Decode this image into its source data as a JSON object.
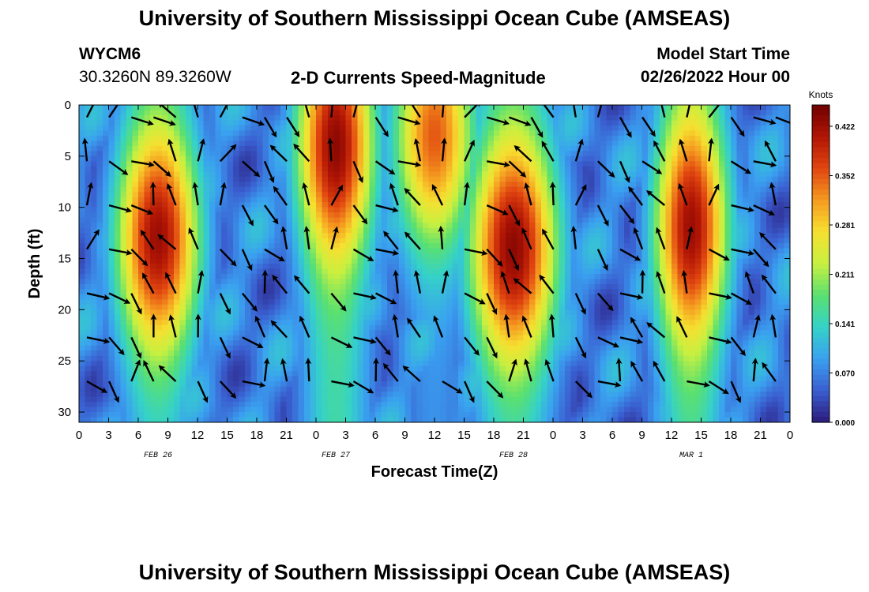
{
  "header": {
    "title": "University of Southern Mississippi Ocean Cube (AMSEAS)",
    "station_id": "WYCM6",
    "station_coords": "30.3260N  89.3260W",
    "plot_title": "2-D Currents Speed-Magnitude",
    "model_start_label": "Model Start Time",
    "model_start_value": "02/26/2022 Hour 00",
    "bottom_title": "University of Southern Mississippi Ocean Cube (AMSEAS)"
  },
  "chart_data": {
    "type": "heatmap",
    "title": "2-D Currents Speed-Magnitude",
    "xlabel": "Forecast Time(Z)",
    "ylabel": "Depth (ft)",
    "x_range_hours": [
      0,
      72
    ],
    "y_range_ft": [
      0,
      31
    ],
    "y_inverted": true,
    "x_ticks": [
      {
        "h": 0,
        "label": "0"
      },
      {
        "h": 3,
        "label": "3"
      },
      {
        "h": 6,
        "label": "6"
      },
      {
        "h": 9,
        "label": "9"
      },
      {
        "h": 12,
        "label": "12"
      },
      {
        "h": 15,
        "label": "15"
      },
      {
        "h": 18,
        "label": "18"
      },
      {
        "h": 21,
        "label": "21"
      },
      {
        "h": 24,
        "label": "0"
      },
      {
        "h": 27,
        "label": "3"
      },
      {
        "h": 30,
        "label": "6"
      },
      {
        "h": 33,
        "label": "9"
      },
      {
        "h": 36,
        "label": "12"
      },
      {
        "h": 39,
        "label": "15"
      },
      {
        "h": 42,
        "label": "18"
      },
      {
        "h": 45,
        "label": "21"
      },
      {
        "h": 48,
        "label": "0"
      },
      {
        "h": 51,
        "label": "3"
      },
      {
        "h": 54,
        "label": "6"
      },
      {
        "h": 57,
        "label": "9"
      },
      {
        "h": 60,
        "label": "12"
      },
      {
        "h": 63,
        "label": "15"
      },
      {
        "h": 66,
        "label": "18"
      },
      {
        "h": 69,
        "label": "21"
      },
      {
        "h": 72,
        "label": "0"
      }
    ],
    "date_labels": [
      {
        "h": 8,
        "label": "FEB 26"
      },
      {
        "h": 26,
        "label": "FEB 27"
      },
      {
        "h": 44,
        "label": "FEB 28"
      },
      {
        "h": 62,
        "label": "MAR 1"
      }
    ],
    "y_ticks": [
      {
        "v": 0,
        "label": "0"
      },
      {
        "v": 5,
        "label": "5"
      },
      {
        "v": 10,
        "label": "10"
      },
      {
        "v": 15,
        "label": "15"
      },
      {
        "v": 20,
        "label": "20"
      },
      {
        "v": 25,
        "label": "25"
      },
      {
        "v": 30,
        "label": "30"
      }
    ],
    "colorbar": {
      "unit": "Knots",
      "ticks": [
        "0.422",
        "0.352",
        "0.281",
        "0.211",
        "0.141",
        "0.070",
        "0.000"
      ],
      "min": 0.0,
      "max": 0.45,
      "colors": [
        "#2b1a7a",
        "#3a5fd0",
        "#3aa0f0",
        "#35d2c8",
        "#5ae070",
        "#c8f040",
        "#f6e030",
        "#f59a20",
        "#e04510",
        "#b01505",
        "#700000"
      ]
    },
    "speed_bands": [
      {
        "center_h": 8,
        "base": 0.12,
        "peak_depth": 13,
        "peak": 0.42,
        "width_h": 4.5
      },
      {
        "center_h": 26,
        "base": 0.15,
        "peak_depth": 4,
        "peak": 0.43,
        "width_h": 4.2
      },
      {
        "center_h": 36,
        "base": 0.08,
        "peak_depth": 3,
        "peak": 0.35,
        "width_h": 4.5
      },
      {
        "center_h": 44,
        "base": 0.13,
        "peak_depth": 14,
        "peak": 0.43,
        "width_h": 4.8
      },
      {
        "center_h": 62,
        "base": 0.15,
        "peak_depth": 12,
        "peak": 0.42,
        "width_h": 4.0
      }
    ],
    "quiver": {
      "x_step_hours": 2.25,
      "y_step_ft": 4.3,
      "arrow_length_px": 28,
      "color": "#000000"
    }
  }
}
